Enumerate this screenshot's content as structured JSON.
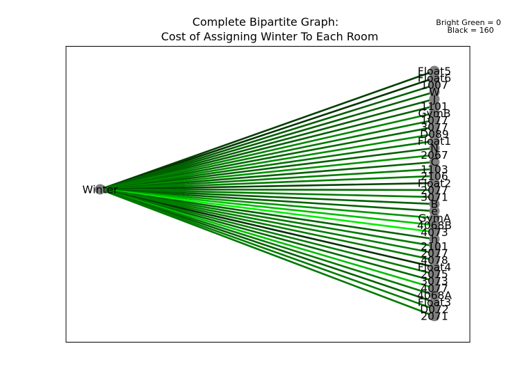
{
  "chart_data": {
    "type": "bipartite-graph",
    "title_line1": "Complete Bipartite Graph:",
    "title_line2": "Cost of Assigning Winter To Each Room",
    "legend_line1": "Bright Green = 0",
    "legend_line2": "Black = 160",
    "color_scale": {
      "min_value": 0,
      "min_color": "#00ff00",
      "max_value": 160,
      "max_color": "#000000"
    },
    "left_node": "Winter",
    "node_color": "#808080",
    "rooms": [
      {
        "name": "Float5",
        "cost": 120
      },
      {
        "name": "Float6",
        "cost": 128
      },
      {
        "name": "1007",
        "cost": 100
      },
      {
        "name": "W",
        "cost": 100
      },
      {
        "name": "J",
        "cost": 100
      },
      {
        "name": "1101",
        "cost": 100
      },
      {
        "name": "GymB",
        "cost": 75
      },
      {
        "name": "1077",
        "cost": 85
      },
      {
        "name": "3077",
        "cost": 95
      },
      {
        "name": "D089",
        "cost": 72
      },
      {
        "name": "Float1",
        "cost": 88
      },
      {
        "name": "N",
        "cost": 100
      },
      {
        "name": "2067",
        "cost": 68
      },
      {
        "name": "C",
        "cost": 100
      },
      {
        "name": "1103",
        "cost": 82
      },
      {
        "name": "2106",
        "cost": 82
      },
      {
        "name": "Float2",
        "cost": 118
      },
      {
        "name": "2077",
        "cost": 90
      },
      {
        "name": "3071",
        "cost": 82
      },
      {
        "name": "B",
        "cost": 100
      },
      {
        "name": "e",
        "cost": 100
      },
      {
        "name": "GymA",
        "cost": 65
      },
      {
        "name": "4068B",
        "cost": 40
      },
      {
        "name": "4073",
        "cost": 10
      },
      {
        "name": "h",
        "cost": 100
      },
      {
        "name": "2101",
        "cost": 82
      },
      {
        "name": "2077b",
        "display": "2077",
        "cost": 82
      },
      {
        "name": "4078",
        "cost": 82
      },
      {
        "name": "Float4",
        "cost": 130
      },
      {
        "name": "2075",
        "display": "2075",
        "cost": 82
      },
      {
        "name": "3073",
        "cost": 95
      },
      {
        "name": "4077",
        "cost": 40
      },
      {
        "name": "4068A",
        "cost": 85
      },
      {
        "name": "Float3",
        "cost": 100
      },
      {
        "name": "D072",
        "display": "D072",
        "cost": 82
      },
      {
        "name": "2071",
        "cost": 85
      }
    ]
  }
}
